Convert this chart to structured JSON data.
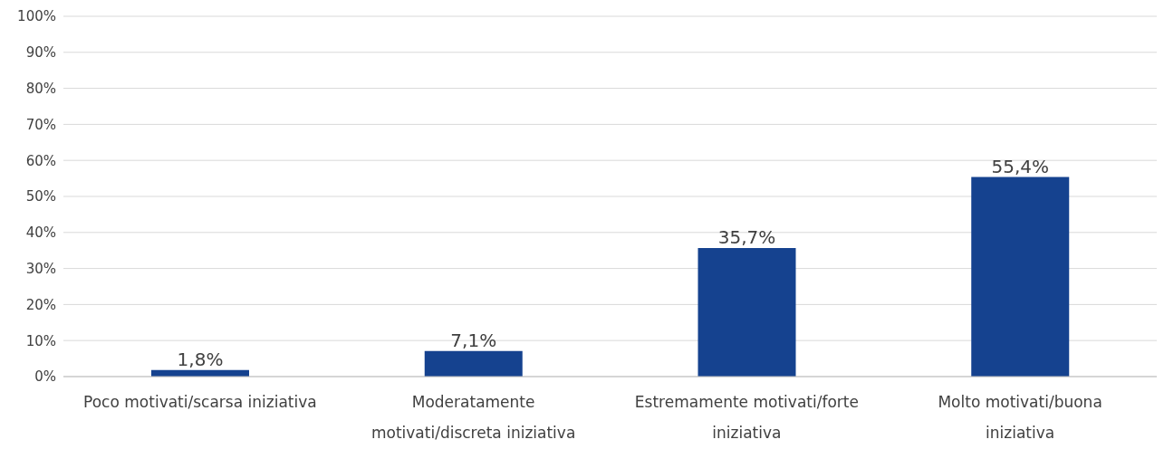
{
  "chart_data": {
    "type": "bar",
    "categories": [
      "Poco motivati/scarsa iniziativa",
      "Moderatamente motivati/discreta iniziativa",
      "Estremamente motivati/forte iniziativa",
      "Molto motivati/buona iniziativa"
    ],
    "values": [
      1.8,
      7.1,
      35.7,
      55.4
    ],
    "value_labels": [
      "1,8%",
      "7,1%",
      "35,7%",
      "55,4%"
    ],
    "color": "#15428f",
    "ylim": [
      0,
      100
    ],
    "yticks": [
      {
        "value": 0,
        "label": "0%"
      },
      {
        "value": 10,
        "label": "10%"
      },
      {
        "value": 20,
        "label": "20%"
      },
      {
        "value": 30,
        "label": "30%"
      },
      {
        "value": 40,
        "label": "40%"
      },
      {
        "value": 50,
        "label": "50%"
      },
      {
        "value": 60,
        "label": "60%"
      },
      {
        "value": 70,
        "label": "70%"
      },
      {
        "value": 80,
        "label": "80%"
      },
      {
        "value": 90,
        "label": "90%"
      },
      {
        "value": 100,
        "label": "100%"
      }
    ],
    "grid": "y"
  }
}
